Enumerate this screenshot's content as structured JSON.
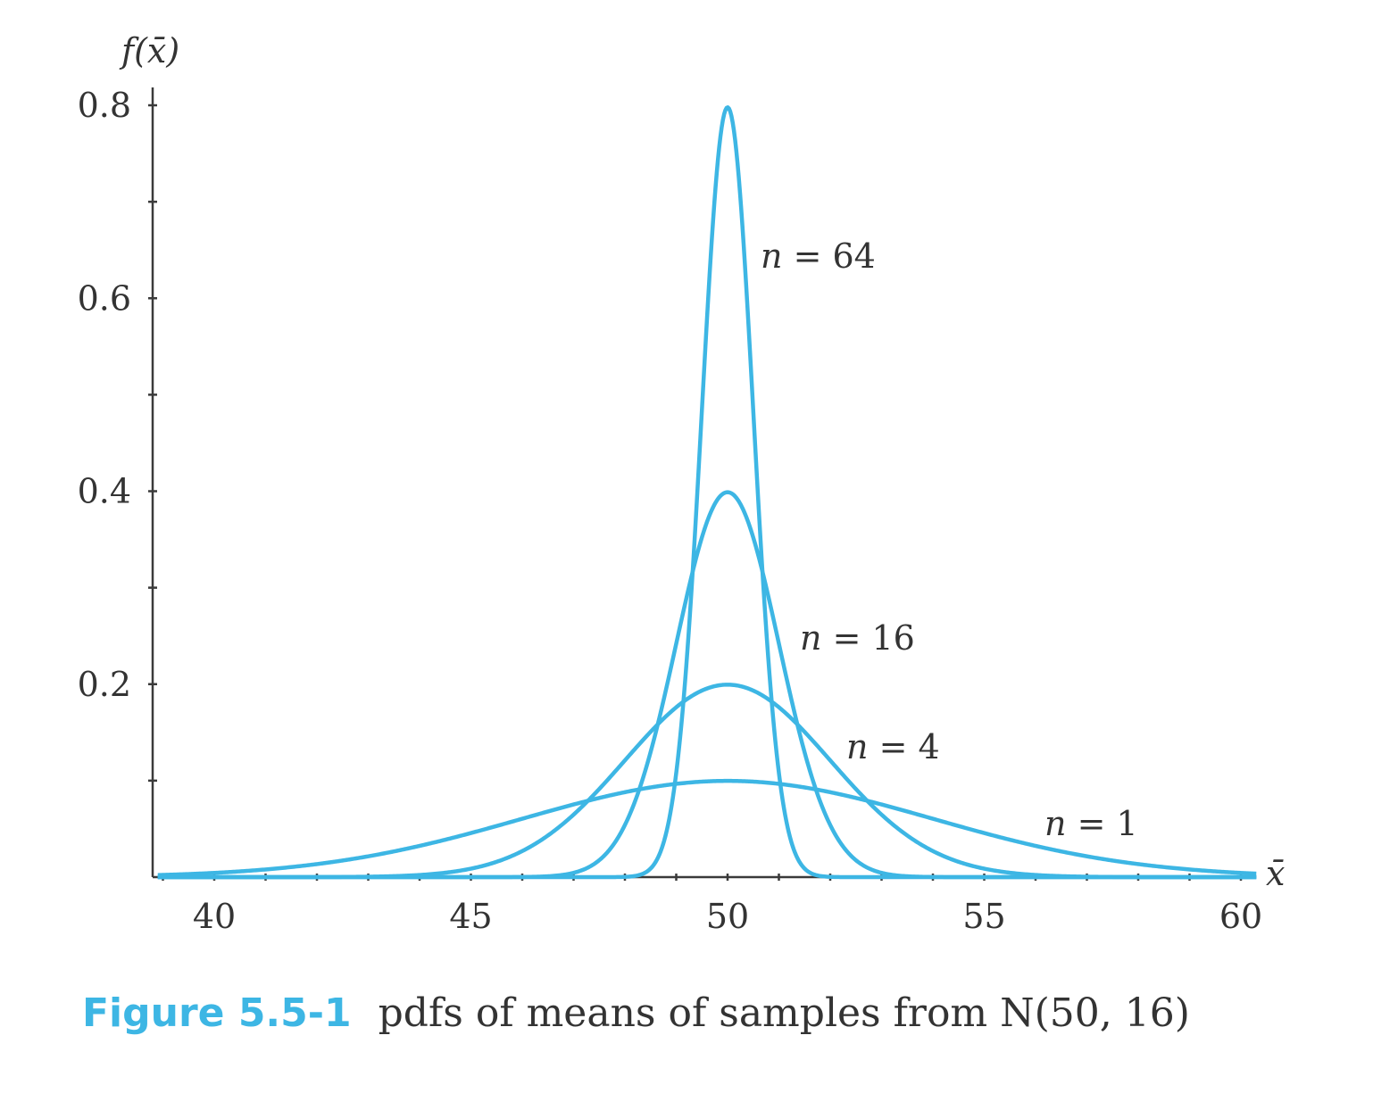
{
  "chart_data": {
    "type": "line",
    "xlabel": "x̄",
    "ylabel": "f(x̄)",
    "xlim": [
      38.9,
      60.3
    ],
    "ylim": [
      0,
      0.8
    ],
    "x_ticks": [
      40,
      45,
      50,
      55,
      60
    ],
    "y_ticks": [
      0.2,
      0.4,
      0.6,
      0.8
    ],
    "x_tick_labels": [
      "40",
      "45",
      "50",
      "55",
      "60"
    ],
    "y_tick_labels": [
      "0.2",
      "0.4",
      "0.6",
      "0.8"
    ],
    "grid": false,
    "series": [
      {
        "name": "n = 64",
        "label": "n = 64",
        "mean": 50,
        "sd": 0.5,
        "peak": 0.798
      },
      {
        "name": "n = 16",
        "label": "n = 16",
        "mean": 50,
        "sd": 1.0,
        "peak": 0.399
      },
      {
        "name": "n = 4",
        "label": "n = 4",
        "mean": 50,
        "sd": 2.0,
        "peak": 0.199
      },
      {
        "name": "n = 1",
        "label": "n = 1",
        "mean": 50,
        "sd": 4.0,
        "peak": 0.0997
      }
    ]
  },
  "colors": {
    "curve": "#3db6e4",
    "axis": "#3a3a3a",
    "caption_accent": "#3db6e4"
  },
  "caption": {
    "figure_label": "Figure 5.5-1",
    "text": "pdfs of means of samples from N(50, 16)"
  }
}
